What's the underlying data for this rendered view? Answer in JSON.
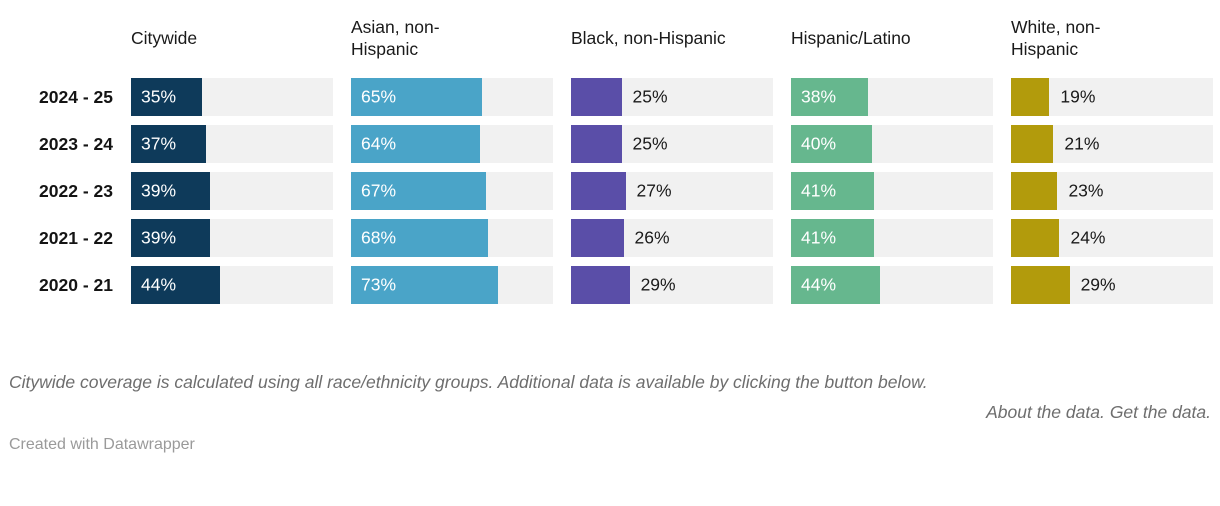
{
  "chart_data": {
    "type": "bar",
    "variant": "small-multiples-horizontal",
    "categories": [
      "2024 - 25",
      "2023 - 24",
      "2022 - 23",
      "2021 - 22",
      "2020 - 21"
    ],
    "series": [
      {
        "name": "Citywide",
        "color": "#0e3a5a",
        "values": [
          35,
          37,
          39,
          39,
          44
        ],
        "value_label_position": "inside"
      },
      {
        "name": "Asian, non-Hispanic",
        "color": "#4aa4c8",
        "values": [
          65,
          64,
          67,
          68,
          73
        ],
        "value_label_position": "inside"
      },
      {
        "name": "Black, non-Hispanic",
        "color": "#5a4ea8",
        "values": [
          25,
          25,
          27,
          26,
          29
        ],
        "value_label_position": "outside"
      },
      {
        "name": "Hispanic/Latino",
        "color": "#66b78e",
        "values": [
          38,
          40,
          41,
          41,
          44
        ],
        "value_label_position": "inside"
      },
      {
        "name": "White, non-Hispanic",
        "color": "#b29b0c",
        "values": [
          19,
          21,
          23,
          24,
          29
        ],
        "value_label_position": "outside"
      }
    ],
    "value_suffix": "%",
    "xlim": [
      0,
      100
    ],
    "track_color": "#f1f1f1",
    "legend_position": "none",
    "grid": "off"
  },
  "footer": {
    "note": "Citywide coverage is calculated using all race/ethnicity groups. Additional data is available by clicking the button below.",
    "about_link_label": "About the data.",
    "get_link_label": "Get the data.",
    "credit": "Created with Datawrapper"
  }
}
